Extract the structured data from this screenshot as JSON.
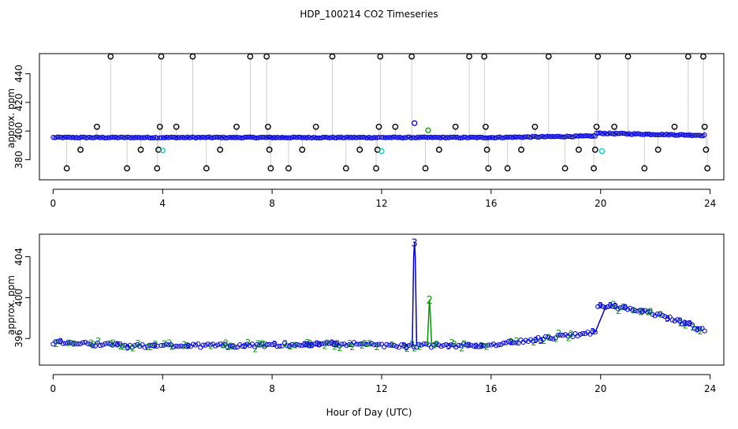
{
  "title": "HDP_100214  CO2 Timeseries",
  "xlabel": "Hour of Day (UTC)",
  "colors": {
    "axis": "#000000",
    "blue": "#0000dd",
    "green": "#009900",
    "cyan": "#00cccc",
    "gray": "#888888",
    "black": "#000000"
  },
  "chart_data": [
    {
      "type": "scatter",
      "panel": "top",
      "ylabel": "approx. ppm",
      "xlim": [
        -0.5,
        24.5
      ],
      "ylim": [
        366,
        454
      ],
      "xticks": [
        0,
        4,
        8,
        12,
        16,
        20,
        24
      ],
      "yticks": [
        380,
        400,
        420,
        440
      ],
      "grid": false,
      "legend": "none",
      "baseline_segments": [
        {
          "x": [
            0.0,
            3.8
          ],
          "y": [
            395.5,
            395.5
          ]
        },
        {
          "x": [
            3.9,
            7.9
          ],
          "y": [
            395.5,
            395.5
          ]
        },
        {
          "x": [
            7.95,
            11.9
          ],
          "y": [
            395.5,
            395.5
          ]
        },
        {
          "x": [
            12.0,
            15.9
          ],
          "y": [
            395.5,
            395.5
          ]
        },
        {
          "x": [
            15.95,
            19.8
          ],
          "y": [
            395.5,
            396.5
          ]
        },
        {
          "x": [
            19.85,
            23.8
          ],
          "y": [
            398.5,
            397.0
          ]
        }
      ],
      "outliers": [
        {
          "x": 0.5,
          "y": 374
        },
        {
          "x": 1.0,
          "y": 387
        },
        {
          "x": 1.6,
          "y": 403
        },
        {
          "x": 2.1,
          "y": 452
        },
        {
          "x": 2.7,
          "y": 374
        },
        {
          "x": 3.2,
          "y": 387
        },
        {
          "x": 3.8,
          "y": 374
        },
        {
          "x": 3.85,
          "y": 387
        },
        {
          "x": 3.9,
          "y": 403
        },
        {
          "x": 3.95,
          "y": 452
        },
        {
          "x": 4.5,
          "y": 403
        },
        {
          "x": 5.1,
          "y": 452
        },
        {
          "x": 5.6,
          "y": 374
        },
        {
          "x": 6.1,
          "y": 387
        },
        {
          "x": 6.7,
          "y": 403
        },
        {
          "x": 7.2,
          "y": 452
        },
        {
          "x": 7.8,
          "y": 452
        },
        {
          "x": 7.85,
          "y": 403
        },
        {
          "x": 7.9,
          "y": 387
        },
        {
          "x": 7.95,
          "y": 374
        },
        {
          "x": 8.6,
          "y": 374
        },
        {
          "x": 9.1,
          "y": 387
        },
        {
          "x": 9.6,
          "y": 403
        },
        {
          "x": 10.2,
          "y": 452
        },
        {
          "x": 10.7,
          "y": 374
        },
        {
          "x": 11.2,
          "y": 387
        },
        {
          "x": 11.8,
          "y": 374
        },
        {
          "x": 11.85,
          "y": 387
        },
        {
          "x": 11.9,
          "y": 403
        },
        {
          "x": 11.95,
          "y": 452
        },
        {
          "x": 12.5,
          "y": 403
        },
        {
          "x": 13.1,
          "y": 452
        },
        {
          "x": 13.6,
          "y": 374
        },
        {
          "x": 14.1,
          "y": 387
        },
        {
          "x": 14.7,
          "y": 403
        },
        {
          "x": 15.2,
          "y": 452
        },
        {
          "x": 15.75,
          "y": 452
        },
        {
          "x": 15.8,
          "y": 403
        },
        {
          "x": 15.85,
          "y": 387
        },
        {
          "x": 15.9,
          "y": 374
        },
        {
          "x": 16.6,
          "y": 374
        },
        {
          "x": 17.1,
          "y": 387
        },
        {
          "x": 17.6,
          "y": 403
        },
        {
          "x": 18.1,
          "y": 452
        },
        {
          "x": 18.7,
          "y": 374
        },
        {
          "x": 19.2,
          "y": 387
        },
        {
          "x": 19.75,
          "y": 374
        },
        {
          "x": 19.8,
          "y": 387
        },
        {
          "x": 19.85,
          "y": 403
        },
        {
          "x": 19.9,
          "y": 452
        },
        {
          "x": 20.5,
          "y": 403
        },
        {
          "x": 21.0,
          "y": 452
        },
        {
          "x": 21.6,
          "y": 374
        },
        {
          "x": 22.1,
          "y": 387
        },
        {
          "x": 22.7,
          "y": 403
        },
        {
          "x": 23.2,
          "y": 452
        },
        {
          "x": 23.75,
          "y": 452
        },
        {
          "x": 23.8,
          "y": 403
        },
        {
          "x": 23.85,
          "y": 387
        },
        {
          "x": 23.9,
          "y": 374
        }
      ],
      "highlights": [
        {
          "x": 13.2,
          "y": 405.5,
          "color": "blue"
        },
        {
          "x": 13.7,
          "y": 400.5,
          "color": "green"
        },
        {
          "x": 4.0,
          "y": 386.5,
          "color": "cyan"
        },
        {
          "x": 12.0,
          "y": 386.0,
          "color": "cyan"
        },
        {
          "x": 20.05,
          "y": 386.0,
          "color": "cyan"
        }
      ]
    },
    {
      "type": "scatter",
      "panel": "bottom",
      "ylabel": "approx. ppm",
      "xlim": [
        -0.5,
        24.5
      ],
      "ylim": [
        393.4,
        406.2
      ],
      "xticks": [
        0,
        4,
        8,
        12,
        16,
        20,
        24
      ],
      "yticks": [
        396,
        400,
        404
      ],
      "grid": false,
      "legend": "none",
      "point_markers": [
        "2",
        "3"
      ],
      "spikes": [
        {
          "x": 13.2,
          "y": 405.4,
          "label": "3",
          "color": "blue"
        },
        {
          "x": 13.75,
          "y": 399.8,
          "label": "2",
          "color": "green"
        }
      ],
      "segments": [
        {
          "x": [
            0.0,
            3.8
          ],
          "y": [
            395.6,
            395.2
          ]
        },
        {
          "x": [
            3.95,
            7.9
          ],
          "y": [
            395.3,
            395.3
          ]
        },
        {
          "x": [
            8.0,
            11.9
          ],
          "y": [
            395.4,
            395.5
          ]
        },
        {
          "x": [
            12.0,
            15.9
          ],
          "y": [
            395.3,
            395.3
          ]
        },
        {
          "x": [
            16.0,
            19.8
          ],
          "y": [
            395.4,
            396.6
          ]
        },
        {
          "x": [
            19.9,
            23.8
          ],
          "y": [
            399.2,
            396.2
          ]
        }
      ]
    }
  ]
}
